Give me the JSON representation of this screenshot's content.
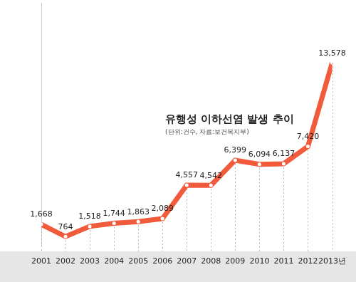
{
  "chart_data": {
    "type": "line",
    "title": "유행성 이하선염 발생 추이",
    "subtitle": "(단위:건수, 자료:보건복지부)",
    "categories": [
      "2001",
      "2002",
      "2003",
      "2004",
      "2005",
      "2006",
      "2007",
      "2008",
      "2009",
      "2010",
      "2011",
      "2012",
      "2013년"
    ],
    "values": [
      1668,
      764,
      1518,
      1744,
      1863,
      2089,
      4557,
      4542,
      6399,
      6094,
      6137,
      7420,
      13578
    ],
    "value_labels": [
      "1,668",
      "764",
      "1,518",
      "1,744",
      "1,863",
      "2,089",
      "4,557",
      "4,542",
      "6,399",
      "6,094",
      "6,137",
      "7,420",
      "13,578"
    ],
    "color": "#f15a3b",
    "marker": "circle",
    "ylim": [
      0,
      18000
    ],
    "grid": "x",
    "data_labels": true,
    "tick_labels": "x",
    "legend": false
  }
}
